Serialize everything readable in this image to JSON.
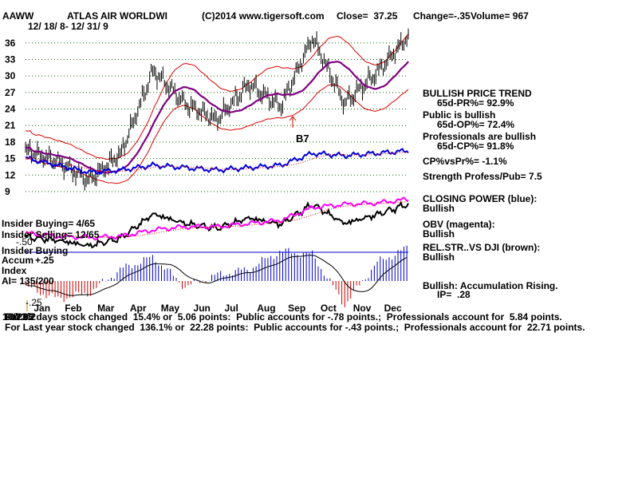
{
  "header": {
    "ticker": "AAWW",
    "company": "ATLAS AIR WORLDWI",
    "copyright": "(C)2014 www.tigersoft.com",
    "close": "Close=  37.25",
    "change": "Change=-.35",
    "volume": "Volume= 967",
    "date_range": "12/ 18/ 8- 12/ 31/ 9"
  },
  "right_panel": {
    "trend_title": "BULLISH PRICE TREND",
    "trend_value": "65d-PR%= 92.9%",
    "public_title": "Public is bullish",
    "public_value": "65d-OP%= 72.4%",
    "pros_title": "Professionals are bullish",
    "pros_value": "65d-CP%= 91.8%",
    "cp_vs_pr": "CP%vsPr%= -1.1%",
    "strength": "Strength Profess/Pub= 7.5",
    "cp_title": "CLOSING POWER (blue):",
    "cp_value": "Bullish",
    "obv_title": "OBV (magenta):",
    "obv_value": "Bullish",
    "rel_title": "REL.STR..VS DJI (brown):",
    "rel_value": "Bullish",
    "accum_title": "Bullish: Accumulation Rising.",
    "accum_value": "IP=  .28"
  },
  "left_panel": {
    "insider_buying_count": "Insider Buying= 4/65",
    "insider_selling_count": "Insider Selling= 12/65",
    "insider_buying": "Insider Buying",
    "accum_label": "Accum",
    "accum_plus": "+.25",
    "minus_50": "-.50",
    "index_label": "Index",
    "ai_value": "AI= 135/200",
    "minus_25": "-.25",
    "overlap_a": "10/23/2",
    "overlap_b": "10/23/2"
  },
  "annotations": {
    "signal": "B7"
  },
  "footer": {
    "line1": "For 65 days stock changed  15.4% or  5.06 points:  Public accounts for -.78 points.;  Professionals account for  5.84 points.",
    "line2": "For Last year stock changed  136.1% or  22.28 points:  Public accounts for -.43 points.;  Professionals account for  22.71 points."
  },
  "colors": {
    "price": "#000000",
    "bands": "#dd0000",
    "moving_average": "#800080",
    "closing_power": "#0000dd",
    "obv": "#ff00ff",
    "accum_positive": "#0000cc",
    "accum_negative": "#cc0000",
    "gridline": "#006600"
  },
  "chart_data": {
    "type": "line",
    "title": "ATLAS AIR WORLDWI",
    "x_tick_labels": [
      "Jan",
      "Feb",
      "Mar",
      "Apr",
      "May",
      "Jun",
      "Jul",
      "Aug",
      "Sep",
      "Oct",
      "Nov",
      "Dec"
    ],
    "y_tick_labels": [
      "36",
      "33",
      "30",
      "27",
      "24",
      "21",
      "18",
      "15",
      "12",
      "9"
    ],
    "ylim": [
      9,
      38
    ],
    "grid": true,
    "series": [
      {
        "name": "",
        "monthly_close": [
          16.5,
          14.5,
          11.0,
          16.0,
          31.0,
          25.0,
          22.0,
          28.5,
          24.5,
          37.0,
          25.0,
          30.5,
          37.25
        ]
      },
      {
        "name": "CLOSING POWER (blue)",
        "monthly_level": [
          0.7,
          0.55,
          0.4,
          0.45,
          0.55,
          0.5,
          0.45,
          0.5,
          0.55,
          0.8,
          0.75,
          0.8,
          0.85
        ]
      },
      {
        "name": "OBV (magenta)",
        "monthly_level": [
          0.35,
          0.3,
          0.28,
          0.3,
          0.4,
          0.45,
          0.45,
          0.5,
          0.55,
          0.75,
          0.8,
          0.82,
          0.88
        ]
      },
      {
        "name": "Accum Index",
        "values": [
          -0.05,
          -0.15,
          -0.1,
          0.1,
          0.2,
          -0.05,
          0.05,
          0.1,
          0.25,
          0.22,
          -0.2,
          0.15,
          0.28
        ]
      }
    ]
  }
}
